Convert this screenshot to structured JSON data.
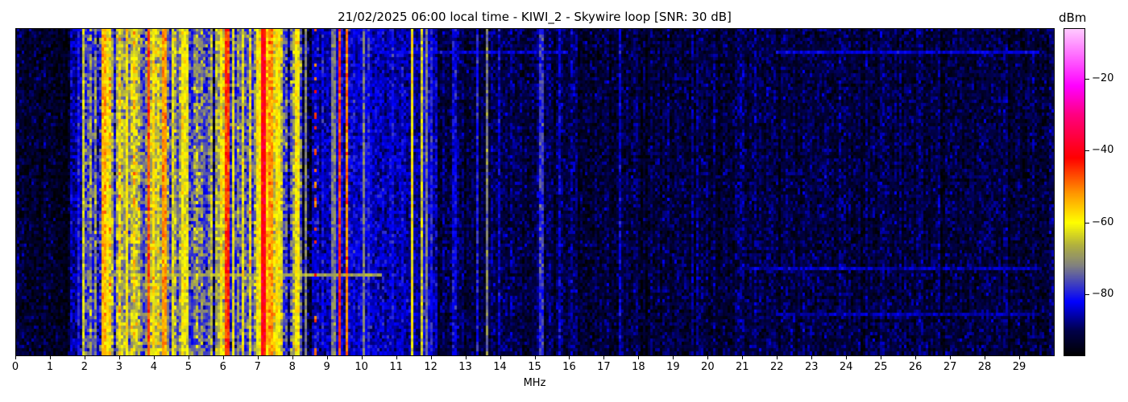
{
  "chart_data": {
    "type": "heatmap",
    "title": "21/02/2025 06:00 local time - KIWI_2 - Skywire loop [SNR: 30 dB]",
    "xlabel": "MHz",
    "ylabel": "",
    "xlim": [
      0,
      30
    ],
    "x_ticks": [
      "0",
      "1",
      "2",
      "3",
      "4",
      "5",
      "6",
      "7",
      "8",
      "9",
      "10",
      "11",
      "12",
      "13",
      "14",
      "15",
      "16",
      "17",
      "18",
      "19",
      "20",
      "21",
      "22",
      "23",
      "24",
      "25",
      "26",
      "27",
      "28",
      "29"
    ],
    "colorbar": {
      "label": "dBm",
      "range": [
        -97,
        -6
      ],
      "ticks": [
        "−20",
        "−40",
        "−60",
        "−80"
      ],
      "tick_values": [
        -20,
        -40,
        -60,
        -80
      ],
      "colormap": [
        {
          "value": -97,
          "color": "#000000"
        },
        {
          "value": -90,
          "color": "#00004a"
        },
        {
          "value": -82,
          "color": "#0000ff"
        },
        {
          "value": -72,
          "color": "#808080"
        },
        {
          "value": -66,
          "color": "#b4b43c"
        },
        {
          "value": -60,
          "color": "#ffff00"
        },
        {
          "value": -52,
          "color": "#ff9900"
        },
        {
          "value": -42,
          "color": "#ff0000"
        },
        {
          "value": -30,
          "color": "#ff0080"
        },
        {
          "value": -22,
          "color": "#ff00ff"
        },
        {
          "value": -6,
          "color": "#ffccff"
        }
      ]
    },
    "grid": false,
    "noise_floor_dbm": [
      {
        "from_mhz": 0,
        "to_mhz": 1.6,
        "dbm": -93
      },
      {
        "from_mhz": 1.6,
        "to_mhz": 2.0,
        "dbm": -86
      },
      {
        "from_mhz": 2.0,
        "to_mhz": 2.5,
        "dbm": -79
      },
      {
        "from_mhz": 2.5,
        "to_mhz": 3.0,
        "dbm": -72
      },
      {
        "from_mhz": 3.0,
        "to_mhz": 4.5,
        "dbm": -66
      },
      {
        "from_mhz": 4.5,
        "to_mhz": 5.0,
        "dbm": -72
      },
      {
        "from_mhz": 5.0,
        "to_mhz": 5.8,
        "dbm": -77
      },
      {
        "from_mhz": 5.8,
        "to_mhz": 7.9,
        "dbm": -73
      },
      {
        "from_mhz": 7.9,
        "to_mhz": 8.6,
        "dbm": -80
      },
      {
        "from_mhz": 8.6,
        "to_mhz": 10.6,
        "dbm": -84
      },
      {
        "from_mhz": 10.6,
        "to_mhz": 12.2,
        "dbm": -85
      },
      {
        "from_mhz": 12.2,
        "to_mhz": 30,
        "dbm": -91
      }
    ],
    "signals": [
      {
        "mhz": 1.85,
        "dbm": -80
      },
      {
        "mhz": 2.0,
        "dbm": -64
      },
      {
        "mhz": 2.58,
        "dbm": -54
      },
      {
        "mhz": 2.7,
        "dbm": -60
      },
      {
        "mhz": 3.23,
        "dbm": -60
      },
      {
        "mhz": 3.86,
        "dbm": -47
      },
      {
        "mhz": 4.0,
        "dbm": -58
      },
      {
        "mhz": 4.33,
        "dbm": -52
      },
      {
        "mhz": 4.55,
        "dbm": -62
      },
      {
        "mhz": 4.84,
        "dbm": -60
      },
      {
        "mhz": 4.95,
        "dbm": -62
      },
      {
        "mhz": 5.95,
        "dbm": -60
      },
      {
        "mhz": 6.14,
        "dbm": -45
      },
      {
        "mhz": 6.3,
        "dbm": -62
      },
      {
        "mhz": 6.6,
        "dbm": -62
      },
      {
        "mhz": 7.05,
        "dbm": -60
      },
      {
        "mhz": 7.19,
        "dbm": -40
      },
      {
        "mhz": 7.3,
        "dbm": -55
      },
      {
        "mhz": 7.4,
        "dbm": -52
      },
      {
        "mhz": 7.6,
        "dbm": -60
      },
      {
        "mhz": 8.16,
        "dbm": -60
      },
      {
        "mhz": 8.4,
        "dbm": -72
      },
      {
        "mhz": 8.7,
        "dbm": -48,
        "intermittent": true
      },
      {
        "mhz": 9.2,
        "dbm": -72
      },
      {
        "mhz": 9.37,
        "dbm": -45
      },
      {
        "mhz": 9.6,
        "dbm": -50
      },
      {
        "mhz": 10.1,
        "dbm": -72
      },
      {
        "mhz": 11.5,
        "dbm": -60
      },
      {
        "mhz": 11.74,
        "dbm": -64
      },
      {
        "mhz": 11.9,
        "dbm": -72
      },
      {
        "mhz": 12.05,
        "dbm": -80
      },
      {
        "mhz": 12.7,
        "dbm": -83
      },
      {
        "mhz": 13.35,
        "dbm": -80
      },
      {
        "mhz": 13.63,
        "dbm": -72
      },
      {
        "mhz": 14.0,
        "dbm": -84
      },
      {
        "mhz": 15.2,
        "dbm": -78
      },
      {
        "mhz": 15.75,
        "dbm": -84
      },
      {
        "mhz": 17.5,
        "dbm": -84
      }
    ],
    "horizontal_traces": [
      {
        "row": 7,
        "from_mhz": 10.5,
        "to_mhz": 16,
        "dbm": -84
      },
      {
        "row": 7,
        "from_mhz": 22,
        "to_mhz": 29.6,
        "dbm": -84
      },
      {
        "row": 75,
        "from_mhz": 2.8,
        "to_mhz": 10.6,
        "dbm": -68
      },
      {
        "row": 73,
        "from_mhz": 21,
        "to_mhz": 29.6,
        "dbm": -85
      },
      {
        "row": 87,
        "from_mhz": 22,
        "to_mhz": 29.6,
        "dbm": -86
      }
    ]
  }
}
